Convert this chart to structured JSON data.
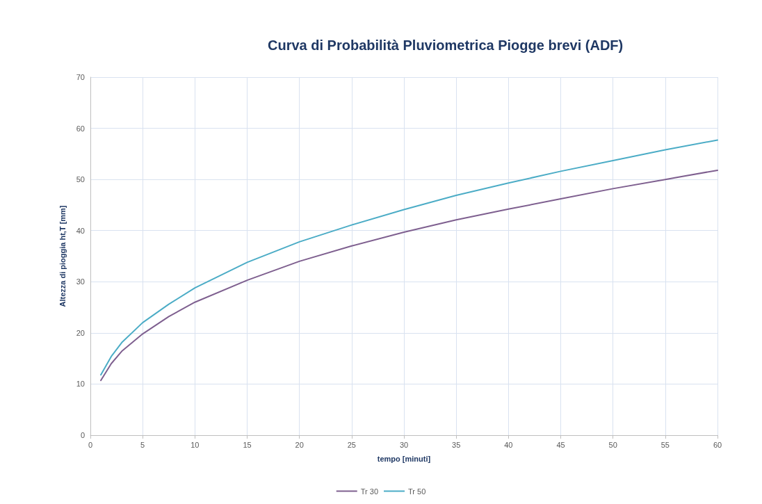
{
  "chart_data": {
    "type": "line",
    "title": "Curva di Probabilità Pluviometrica Piogge brevi (ADF)",
    "xlabel": "tempo [minuti]",
    "ylabel": "Altezza di pioggia ht,T [mm]",
    "x": [
      1,
      2,
      3,
      5,
      7.5,
      10,
      15,
      20,
      25,
      30,
      35,
      40,
      45,
      50,
      55,
      60
    ],
    "series": [
      {
        "name": "Tr 30",
        "color": "#7e5f8f",
        "values": [
          10.7,
          14.0,
          16.4,
          19.8,
          23.2,
          26,
          30.3,
          34,
          37,
          39.7,
          42.1,
          44.2,
          46.2,
          48.2,
          50,
          51.8
        ]
      },
      {
        "name": "Tr 50",
        "color": "#4bacc6",
        "values": [
          11.8,
          15.4,
          18.1,
          22,
          25.6,
          28.8,
          33.8,
          37.8,
          41.1,
          44.1,
          46.9,
          49.3,
          51.6,
          53.7,
          55.8,
          57.7
        ]
      }
    ],
    "xlim": [
      0,
      60
    ],
    "xticks": [
      0,
      5,
      10,
      15,
      20,
      25,
      30,
      35,
      40,
      45,
      50,
      55,
      60
    ],
    "ylim": [
      0,
      70
    ],
    "yticks": [
      0,
      10,
      20,
      30,
      40,
      50,
      60,
      70
    ],
    "grid": true,
    "legend": "bottom",
    "marker": "none",
    "line_style": "solid"
  }
}
